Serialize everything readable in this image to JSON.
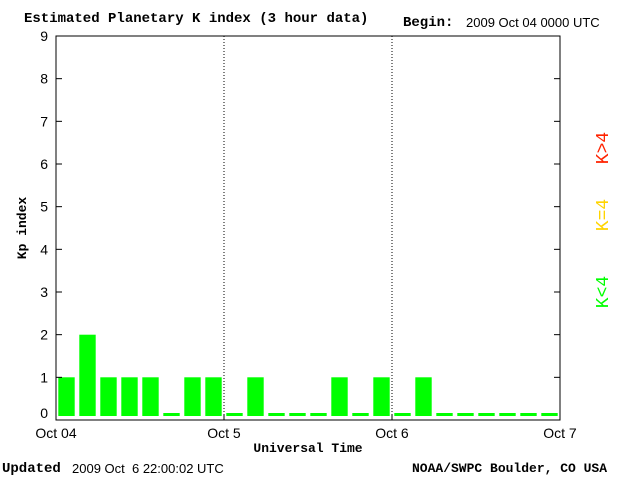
{
  "header": {
    "title": "Estimated Planetary K index (3 hour data)",
    "begin_label": "Begin:",
    "begin_value": "2009 Oct 04 0000 UTC"
  },
  "footer": {
    "updated_label": "Updated",
    "updated_value": "2009 Oct  6 22:00:02 UTC",
    "source": "NOAA/SWPC Boulder, CO USA"
  },
  "colors": {
    "green": "#00ff00",
    "yellow": "#ffd400",
    "red": "#ff2200"
  },
  "chart_data": {
    "type": "bar",
    "xlabel": "Universal Time",
    "ylabel": "Kp index",
    "ylim": [
      0,
      9
    ],
    "yticks": [
      "0",
      "1",
      "2",
      "3",
      "4",
      "5",
      "6",
      "7",
      "8",
      "9"
    ],
    "xticks": [
      "Oct 04",
      "Oct 5",
      "Oct 6",
      "Oct 7"
    ],
    "grid": "dotted vertical lines at day boundaries",
    "legend": [
      {
        "text": "K<4",
        "color": "#00ff00"
      },
      {
        "text": "K=4",
        "color": "#ffd400"
      },
      {
        "text": "K>4",
        "color": "#ff2200"
      }
    ],
    "legend_position": "right, vertical",
    "values": [
      1,
      2,
      1,
      1,
      1,
      0,
      1,
      1,
      0,
      1,
      0,
      0,
      0,
      1,
      0,
      1,
      0,
      1,
      0,
      0,
      0,
      0,
      0,
      0
    ]
  }
}
